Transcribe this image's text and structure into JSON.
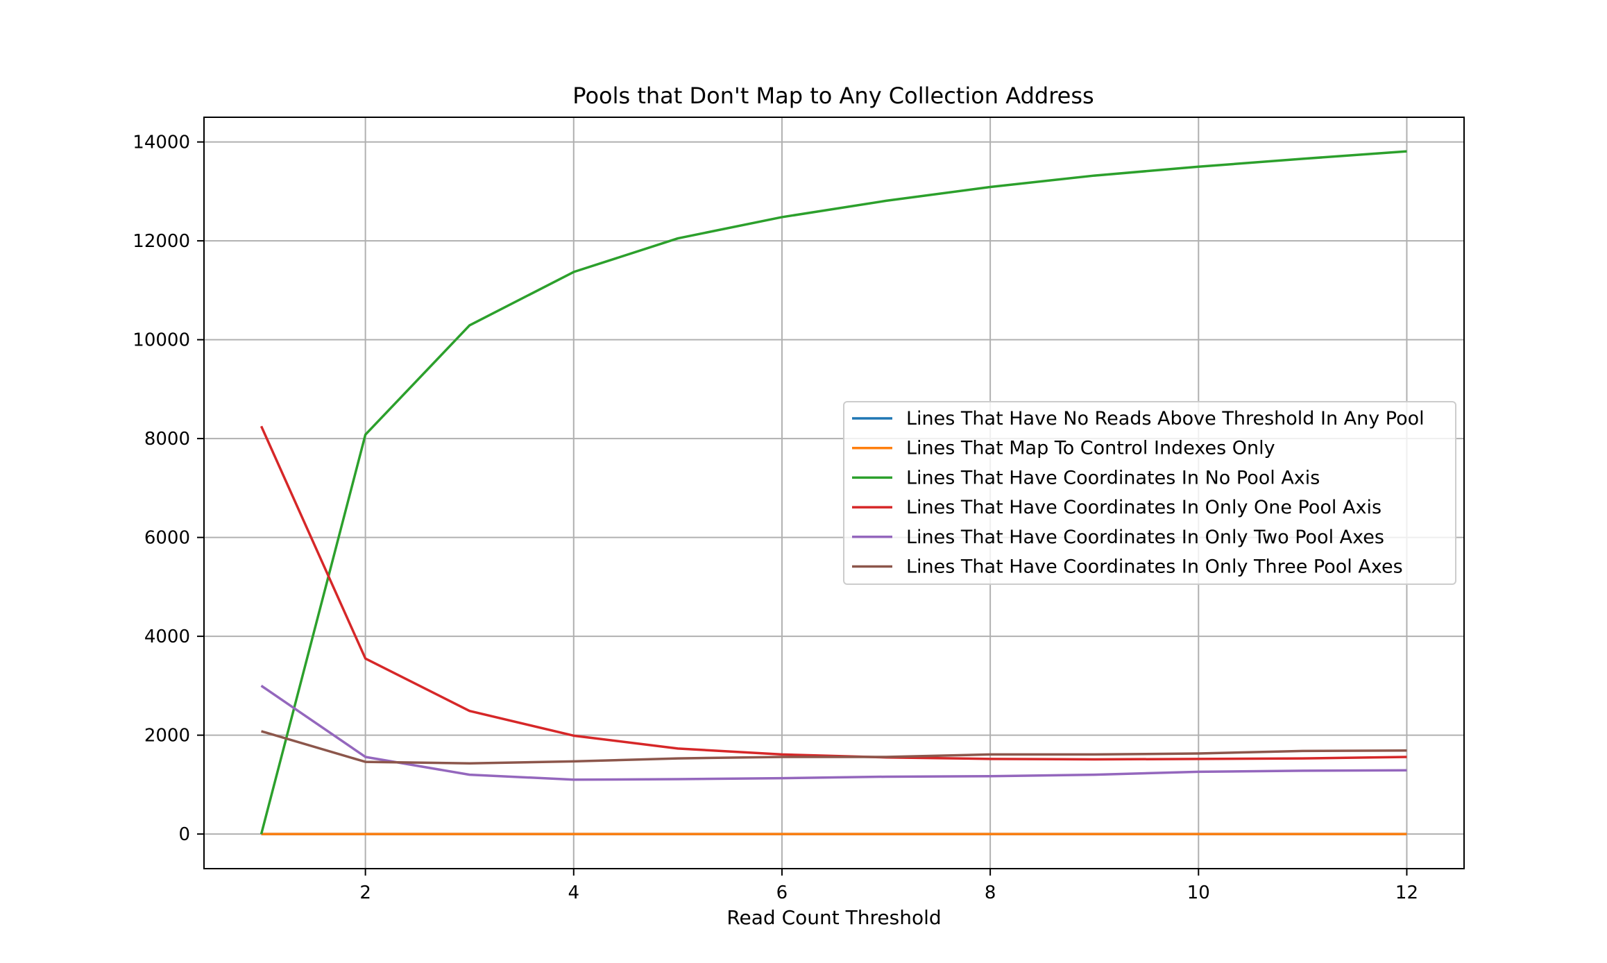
{
  "chart_data": {
    "type": "line",
    "title": "Pools that Don't Map to Any Collection Address",
    "xlabel": "Read Count Threshold",
    "ylabel": "",
    "x": [
      1,
      2,
      3,
      4,
      5,
      6,
      7,
      8,
      9,
      10,
      11,
      12
    ],
    "xlim": [
      0.45,
      12.55
    ],
    "ylim": [
      -700,
      14500
    ],
    "xticks": [
      2,
      4,
      6,
      8,
      10,
      12
    ],
    "yticks": [
      0,
      2000,
      4000,
      6000,
      8000,
      10000,
      12000,
      14000
    ],
    "grid": true,
    "legend_position": "center-right",
    "series": [
      {
        "name": "Lines That Have No Reads Above Threshold In Any Pool",
        "color": "#1f77b4",
        "values": [
          0,
          0,
          0,
          0,
          0,
          0,
          0,
          0,
          0,
          0,
          0,
          0
        ]
      },
      {
        "name": "Lines That Map To Control Indexes Only",
        "color": "#ff7f0e",
        "values": [
          0,
          0,
          0,
          0,
          0,
          0,
          0,
          0,
          0,
          0,
          0,
          0
        ]
      },
      {
        "name": "Lines That Have Coordinates In No Pool Axis",
        "color": "#2ca02c",
        "values": [
          0,
          8080,
          10290,
          11370,
          12050,
          12480,
          12810,
          13090,
          13320,
          13500,
          13660,
          13810
        ]
      },
      {
        "name": "Lines That Have Coordinates In Only One Pool Axis",
        "color": "#d62728",
        "values": [
          8250,
          3550,
          2490,
          1990,
          1730,
          1610,
          1550,
          1520,
          1510,
          1520,
          1530,
          1560
        ]
      },
      {
        "name": "Lines That Have Coordinates In Only Two Pool Axes",
        "color": "#9467bd",
        "values": [
          3000,
          1560,
          1200,
          1100,
          1110,
          1130,
          1160,
          1170,
          1200,
          1260,
          1280,
          1290
        ]
      },
      {
        "name": "Lines That Have Coordinates In Only Three Pool Axes",
        "color": "#8c564b",
        "values": [
          2080,
          1460,
          1430,
          1470,
          1530,
          1560,
          1560,
          1610,
          1610,
          1630,
          1680,
          1690
        ]
      }
    ]
  }
}
